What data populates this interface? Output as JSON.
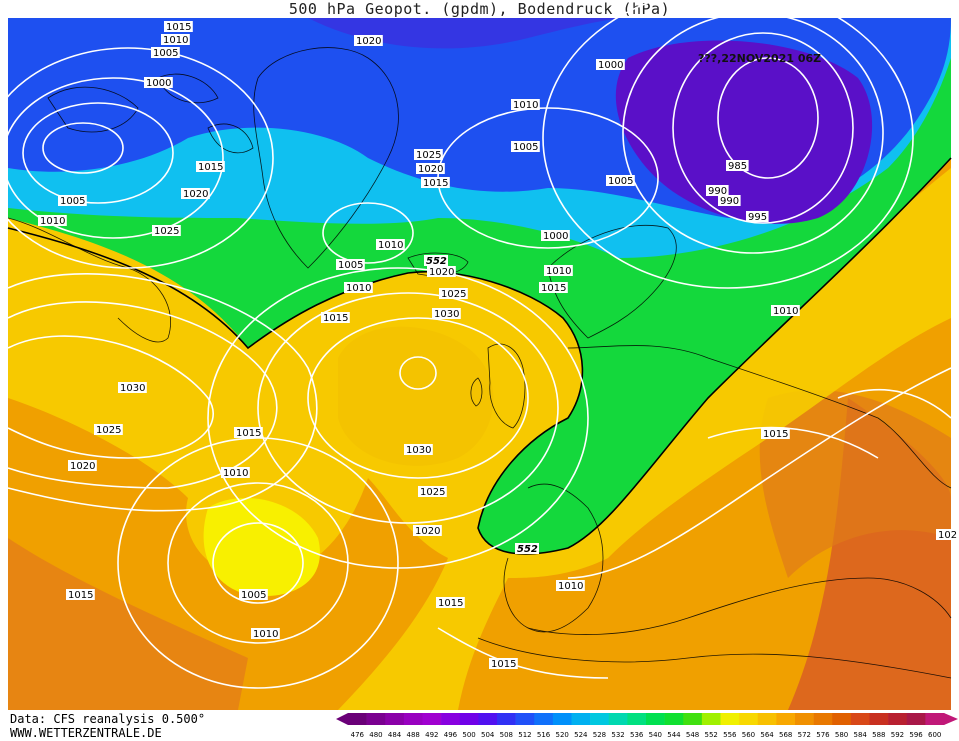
{
  "title": "500 hPa Geopot. (gpdm), Bodendruck (hPa)",
  "date_label": "???,22NOV2021  06Z",
  "footer": {
    "data_source": "Data: CFS reanalysis 0.500°",
    "website": "WWW.WETTERZENTRALE.DE"
  },
  "colors": {
    "deep_purple": "#5a10c8",
    "blue": "#1e40f0",
    "cyan": "#10c0f0",
    "green": "#14d83c",
    "yellow": "#f8f000",
    "orange": "#f0a000",
    "dark_orange": "#dc7800",
    "red_orange": "#d85020",
    "contour": "#ffffff",
    "geo552_line": "#000000"
  },
  "legend": {
    "values": [
      "476",
      "480",
      "484",
      "488",
      "492",
      "496",
      "500",
      "504",
      "508",
      "512",
      "516",
      "520",
      "524",
      "528",
      "532",
      "536",
      "540",
      "544",
      "548",
      "552",
      "556",
      "560",
      "564",
      "568",
      "572",
      "576",
      "580",
      "584",
      "588",
      "592",
      "596",
      "600"
    ],
    "colors": [
      "#6a0078",
      "#7a0090",
      "#8a00a8",
      "#9800c0",
      "#a000d0",
      "#8800e0",
      "#7000e8",
      "#5010f0",
      "#3030f4",
      "#2050f8",
      "#1070fa",
      "#0090fa",
      "#00b0f0",
      "#00c8e0",
      "#00d8b0",
      "#00e080",
      "#00e050",
      "#10e030",
      "#40e010",
      "#a0f000",
      "#f0f000",
      "#f8d800",
      "#f8c000",
      "#f8a800",
      "#f09000",
      "#e87800",
      "#e06000",
      "#d84818",
      "#c83020",
      "#b82030",
      "#a81848",
      "#c01878"
    ]
  },
  "isobar_labels": [
    {
      "text": "1015"
    },
    {
      "text": "1010"
    },
    {
      "text": "1005"
    },
    {
      "text": "1000"
    },
    {
      "text": "1020"
    },
    {
      "text": "1010"
    },
    {
      "text": "1000"
    },
    {
      "text": "1005"
    },
    {
      "text": "1025"
    },
    {
      "text": "1020"
    },
    {
      "text": "1015"
    },
    {
      "text": "1005"
    },
    {
      "text": "985"
    },
    {
      "text": "990"
    },
    {
      "text": "995"
    },
    {
      "text": "1015"
    },
    {
      "text": "1020"
    },
    {
      "text": "1005"
    },
    {
      "text": "1010"
    },
    {
      "text": "1025"
    },
    {
      "text": "1000"
    },
    {
      "text": "1005"
    },
    {
      "text": "1010"
    },
    {
      "text": "1015"
    },
    {
      "text": "1010"
    },
    {
      "text": "1020"
    },
    {
      "text": "1025"
    },
    {
      "text": "1030"
    },
    {
      "text": "1015"
    },
    {
      "text": "1010"
    },
    {
      "text": "1030"
    },
    {
      "text": "1025"
    },
    {
      "text": "1020"
    },
    {
      "text": "1015"
    },
    {
      "text": "1030"
    },
    {
      "text": "1025"
    },
    {
      "text": "1020"
    },
    {
      "text": "1010"
    },
    {
      "text": "1015"
    },
    {
      "text": "1005"
    },
    {
      "text": "1010"
    },
    {
      "text": "1015"
    },
    {
      "text": "1010"
    },
    {
      "text": "1015"
    },
    {
      "text": "1015"
    },
    {
      "text": "1010"
    },
    {
      "text": "102"
    },
    {
      "text": "990"
    }
  ],
  "geopotential_labels": [
    {
      "text": "552"
    },
    {
      "text": "552"
    }
  ]
}
